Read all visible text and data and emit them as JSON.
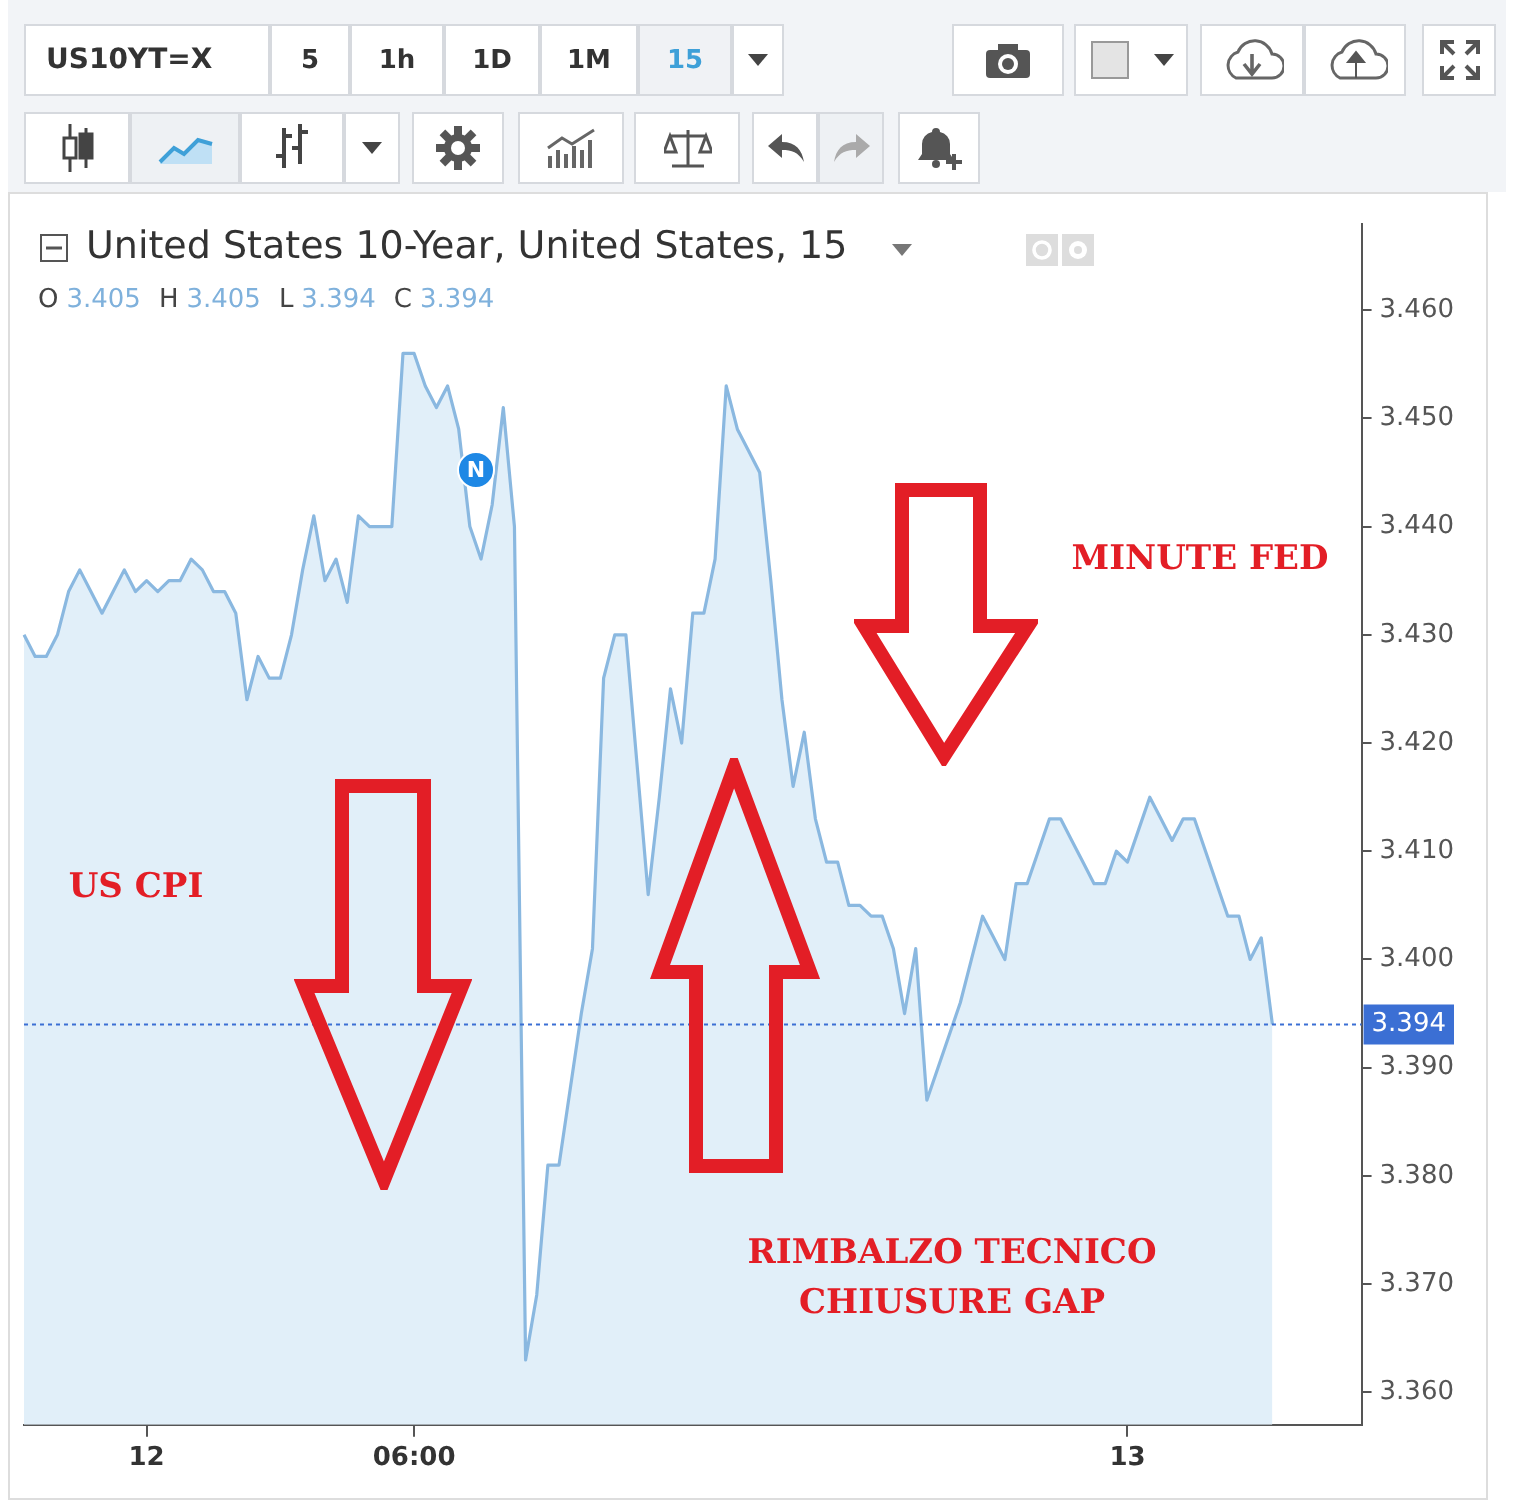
{
  "chart_data": {
    "type": "area",
    "title": "United States 10-Year, United States, 15",
    "subtitle": "O 3.405 H 3.405 L 3.394 C 3.394",
    "color": "#8ab8e0",
    "categories": [
      null,
      null,
      null,
      null,
      null,
      null,
      null,
      null,
      null,
      null,
      null,
      "12",
      null,
      null,
      null,
      null,
      null,
      null,
      null,
      null,
      null,
      null,
      null,
      null,
      null,
      null,
      null,
      null,
      null,
      null,
      null,
      null,
      null,
      null,
      null,
      "06:00",
      null,
      null,
      null,
      null,
      null,
      null,
      null,
      null,
      null,
      null,
      null,
      null,
      null,
      null,
      null,
      null,
      null,
      null,
      null,
      null,
      null,
      null,
      null,
      null,
      null,
      null,
      null,
      null,
      null,
      null,
      null,
      null,
      null,
      null,
      null,
      null,
      null,
      null,
      null,
      null,
      null,
      null,
      null,
      null,
      null,
      null,
      null,
      null,
      null,
      null,
      null,
      null,
      null,
      null,
      null,
      null,
      null,
      null,
      null,
      null,
      null,
      null,
      null,
      "13",
      null,
      null,
      null,
      null,
      null,
      null,
      null,
      null,
      null,
      null,
      null,
      null,
      null,
      null,
      null,
      null,
      null,
      null,
      null,
      null,
      null
    ],
    "values": [
      3.43,
      3.428,
      3.428,
      3.43,
      3.434,
      3.436,
      3.434,
      3.432,
      3.434,
      3.436,
      3.434,
      3.435,
      3.434,
      3.435,
      3.435,
      3.437,
      3.436,
      3.434,
      3.434,
      3.432,
      3.424,
      3.428,
      3.426,
      3.426,
      3.43,
      3.436,
      3.441,
      3.435,
      3.437,
      3.433,
      3.441,
      3.44,
      3.44,
      3.44,
      3.456,
      3.456,
      3.453,
      3.451,
      3.453,
      3.449,
      3.44,
      3.437,
      3.442,
      3.451,
      3.44,
      3.363,
      3.369,
      3.381,
      3.381,
      3.388,
      3.395,
      3.401,
      3.426,
      3.43,
      3.43,
      3.418,
      3.406,
      3.415,
      3.425,
      3.42,
      3.432,
      3.432,
      3.437,
      3.453,
      3.449,
      3.447,
      3.445,
      3.435,
      3.424,
      3.416,
      3.421,
      3.413,
      3.409,
      3.409,
      3.405,
      3.405,
      3.404,
      3.404,
      3.401,
      3.395,
      3.401,
      3.387,
      3.39,
      3.393,
      3.396,
      3.4,
      3.404,
      3.402,
      3.4,
      3.407,
      3.407,
      3.41,
      3.413,
      3.413,
      3.411,
      3.409,
      3.407,
      3.407,
      3.41,
      3.409,
      3.412,
      3.415,
      3.413,
      3.411,
      3.413,
      3.413,
      3.41,
      3.407,
      3.404,
      3.404,
      3.4,
      3.402,
      3.394,
      null,
      null,
      null,
      null,
      null,
      null,
      null,
      null
    ],
    "ylim": [
      3.357,
      3.468
    ],
    "yticks": [
      {
        "value": 3.36,
        "label": "3.360"
      },
      {
        "value": 3.37,
        "label": "3.370"
      },
      {
        "value": 3.38,
        "label": "3.380"
      },
      {
        "value": 3.39,
        "label": "3.390"
      },
      {
        "value": 3.4,
        "label": "3.400"
      },
      {
        "value": 3.41,
        "label": "3.410"
      },
      {
        "value": 3.42,
        "label": "3.420"
      },
      {
        "value": 3.43,
        "label": "3.430"
      },
      {
        "value": 3.44,
        "label": "3.440"
      },
      {
        "value": 3.45,
        "label": "3.450"
      },
      {
        "value": 3.46,
        "label": "3.460"
      }
    ],
    "ref_lines": [
      {
        "axis": "y",
        "value": 3.394,
        "label": "3.394",
        "color": "#3b6fd4",
        "line_style": "dotted"
      }
    ],
    "annotations": [
      "US10YT=X",
      "5",
      "1h",
      "1D",
      "1M",
      "15",
      "US CPI",
      "MINUTE FED",
      "RIMBALZO TECNICO\nCHIUSURE GAP",
      "N"
    ],
    "grid": false,
    "legend": false,
    "marker": "none",
    "line_style": "solid"
  }
}
